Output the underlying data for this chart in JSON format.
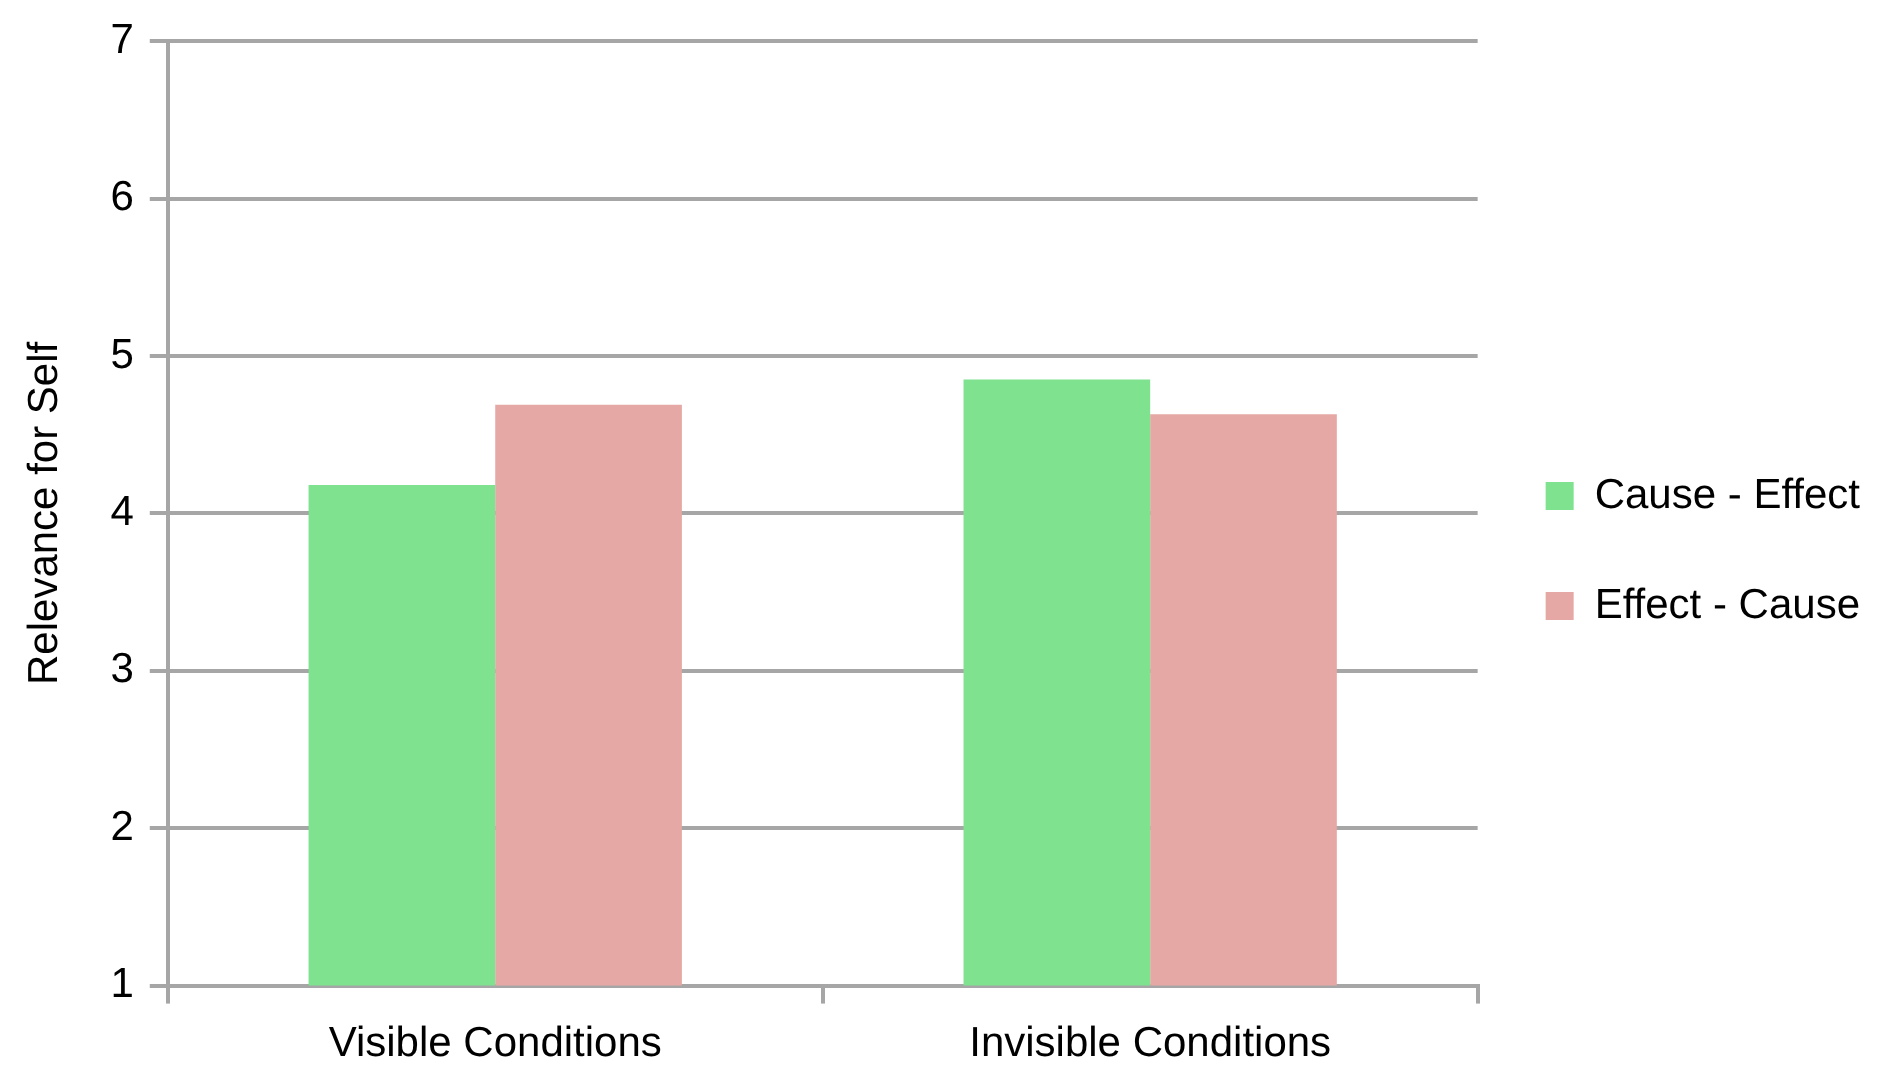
{
  "chart_data": {
    "type": "bar",
    "ylabel": "Relevance for Self",
    "categories": [
      "Visible Conditions",
      "Invisible Conditions"
    ],
    "series": [
      {
        "name": "Cause - Effect",
        "color": "#7ee28f",
        "values": [
          4.18,
          4.85
        ]
      },
      {
        "name": "Effect - Cause",
        "color": "#e6a8a4",
        "values": [
          4.69,
          4.63
        ]
      }
    ],
    "ylim": [
      1,
      7
    ],
    "yticks": [
      1,
      2,
      3,
      4,
      5,
      6,
      7
    ],
    "grid": "y",
    "legend": "right"
  }
}
